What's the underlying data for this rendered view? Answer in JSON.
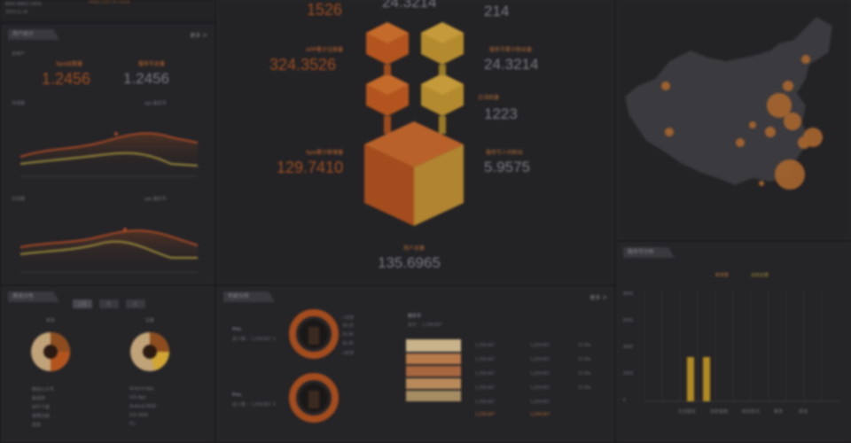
{
  "top_left": {
    "line1": "BIAS AMES DATA",
    "line2": "2024-11-18",
    "faded_title": "ANALYSIS OF DATA"
  },
  "panel_users": {
    "title": "用户统计",
    "more": "更多 ≫",
    "total_label": "总用户",
    "stat1": {
      "label": "Spot总数量",
      "value": "1.2456"
    },
    "stat2": {
      "label": "服务号总量",
      "value": "1.2456"
    },
    "chart1": {
      "title": "月增量",
      "legend": "app  服务号"
    },
    "chart2": {
      "title": "日增量",
      "legend": "app  服务号"
    },
    "axis_ticks": [
      "1月",
      "2月",
      "3月",
      "4月",
      "5月",
      "6月",
      "7月",
      "8月",
      "9月",
      "10月",
      "11月",
      "12月"
    ]
  },
  "center": {
    "top_value_left": "1526",
    "top_value_mid": "24.3214",
    "top_value_right": "214",
    "left_stats": [
      {
        "label": "APP累计注册量",
        "value": "324.3526"
      },
      {
        "label": "Spot累计新增量",
        "value": "129.7410"
      }
    ],
    "right_stats": [
      {
        "label": "服务号累计粉丝量",
        "value": "24.3214"
      },
      {
        "label": "日活跃量",
        "value": "1223"
      },
      {
        "label": "服务号人均粉丝",
        "value": "5.9575"
      }
    ],
    "bottom_stat": {
      "label": "用户总量",
      "value": "135.6965"
    },
    "colors": {
      "orange": "#b3541e",
      "gold": "#b38a2d"
    }
  },
  "map": {
    "title": ""
  },
  "panel_service": {
    "title": "服务号分析",
    "legend": [
      "新增量",
      "总粉丝量"
    ],
    "y_ticks": [
      "8000",
      "6000",
      "4000",
      "2000",
      "0"
    ],
    "x_labels": [
      "生活服务",
      "财经金融",
      "新闻资讯",
      "教育",
      "其他"
    ],
    "bars": [
      {
        "category": "生活服务",
        "values": [
          0,
          0
        ]
      },
      {
        "category": "财经金融",
        "values": [
          0,
          0
        ]
      },
      {
        "category": "新闻资讯",
        "values": [
          2.6,
          2.6
        ]
      },
      {
        "category": "教育",
        "values": [
          0,
          0
        ]
      },
      {
        "category": "其他",
        "values": [
          0,
          0
        ]
      }
    ]
  },
  "panel_dist": {
    "title": "渠道分布",
    "tabs": [
      "总量",
      "月",
      "日"
    ],
    "pie1": {
      "title": "渠道",
      "legend": [
        "微信公众号",
        "渠道商",
        "APP下载",
        "官网注册",
        "其他"
      ]
    },
    "pie2": {
      "title": "设备",
      "legend": [
        "Android App",
        "iOS App",
        "Android WEB",
        "iOS WEB",
        "PC"
      ]
    }
  },
  "panel_age": {
    "title": "年龄分布",
    "more": "更多 ≫",
    "group1": {
      "name": "Pino",
      "sub": "总人数 ：1,234,567 人"
    },
    "group2": {
      "name": "Pino",
      "sub": "总人数 ：1,234,567 人"
    },
    "ring_legend": [
      "<18岁",
      "18-25",
      "26-35",
      "36-45",
      ">45岁"
    ],
    "table_title": "服务号",
    "table_sub": "总计 ：1,234,567",
    "table_rows": [
      [
        "1,234,567",
        "1,234,567",
        "12.3%"
      ],
      [
        "1,234,567",
        "1,234,567",
        "12.3%"
      ],
      [
        "1,234,567",
        "1,234,567",
        "12.3%"
      ],
      [
        "1,234,567",
        "1,234,567",
        "12.3%"
      ],
      [
        "1,234,567",
        "1,234,567",
        "12.3%"
      ],
      [
        "1,234,567",
        "1,234,567",
        "12.3%"
      ]
    ]
  }
}
